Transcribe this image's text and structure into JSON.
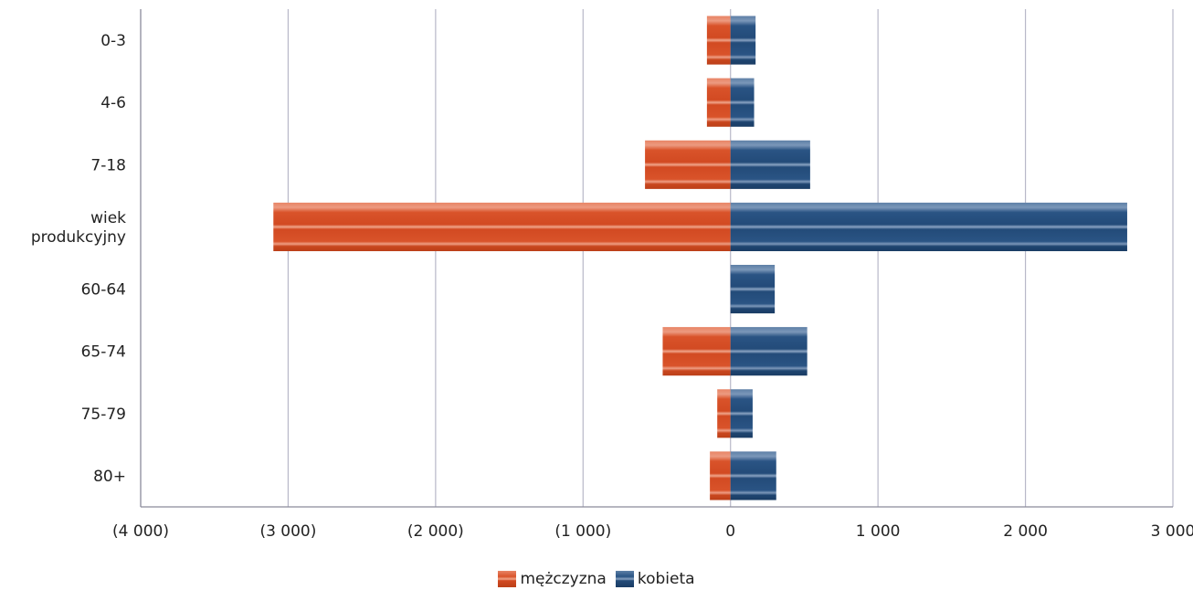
{
  "chart_data": {
    "type": "bar",
    "orientation": "horizontal",
    "categories": [
      "0-3",
      "4-6",
      "7-18",
      "wiek produkcyjny",
      "60-64",
      "65-74",
      "75-79",
      "80+"
    ],
    "category_lines": [
      [
        "0-3"
      ],
      [
        "4-6"
      ],
      [
        "7-18"
      ],
      [
        "wiek",
        "produkcyjny"
      ],
      [
        "60-64"
      ],
      [
        "65-74"
      ],
      [
        "75-79"
      ],
      [
        "80+"
      ]
    ],
    "series": [
      {
        "name": "mężczyzna",
        "color": "#d9532a",
        "values": [
          -160,
          -160,
          -580,
          -3100,
          0,
          -460,
          -90,
          -140
        ]
      },
      {
        "name": "kobieta",
        "color": "#2a5484",
        "values": [
          170,
          160,
          540,
          2690,
          300,
          520,
          150,
          310
        ]
      }
    ],
    "xlim": [
      -4000,
      3000
    ],
    "x_ticks": [
      -4000,
      -3000,
      -2000,
      -1000,
      0,
      1000,
      2000,
      3000
    ],
    "x_tick_labels": [
      "(4 000)",
      "(3 000)",
      "(2 000)",
      "(1 000)",
      "0",
      "1 000",
      "2 000",
      "3 000"
    ],
    "grid": true,
    "legend_position": "bottom"
  },
  "legend": {
    "items": [
      {
        "label": "mężczyzna",
        "color": "#d9532a"
      },
      {
        "label": "kobieta",
        "color": "#2a5484"
      }
    ]
  }
}
